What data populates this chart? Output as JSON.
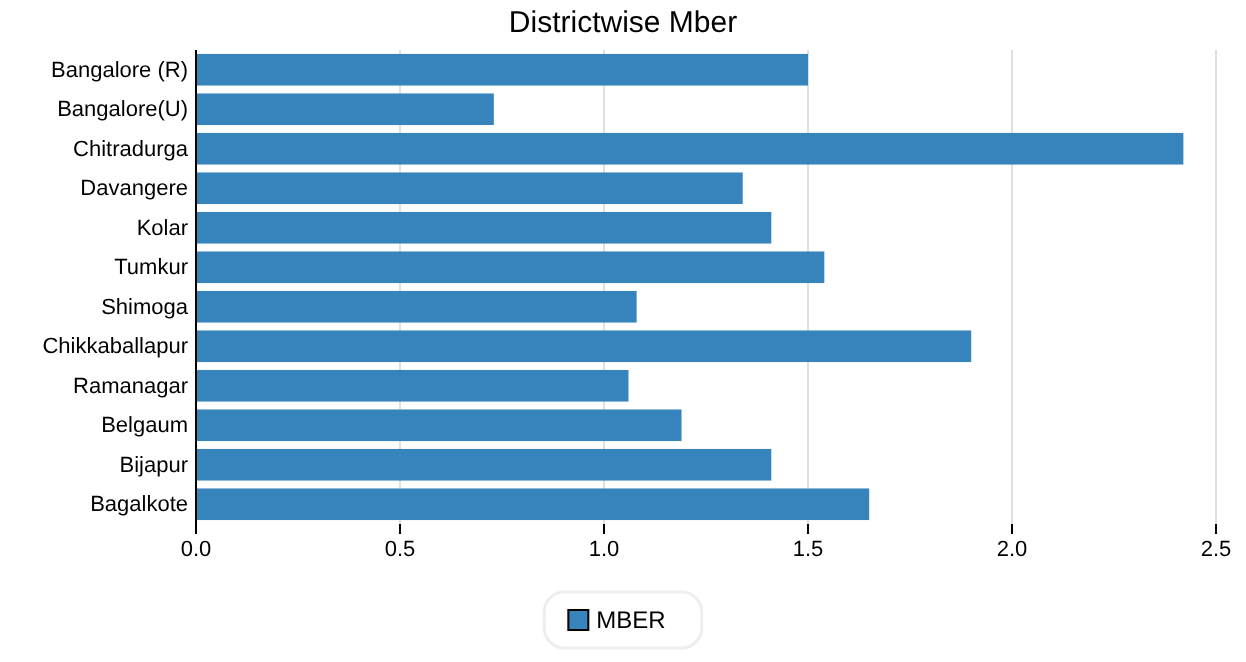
{
  "chart_data": {
    "type": "bar",
    "orientation": "horizontal",
    "title": "Districtwise Mber",
    "categories": [
      "Bangalore (R)",
      "Bangalore(U)",
      "Chitradurga",
      "Davangere",
      "Kolar",
      "Tumkur",
      "Shimoga",
      "Chikkaballapur",
      "Ramanagar",
      "Belgaum",
      "Bijapur",
      "Bagalkote"
    ],
    "series": [
      {
        "name": "MBER",
        "color": "#3784bc",
        "values": [
          1.5,
          0.73,
          2.42,
          1.34,
          1.41,
          1.54,
          1.08,
          1.9,
          1.06,
          1.19,
          1.41,
          1.65
        ]
      }
    ],
    "xlim": [
      0,
      2.5
    ],
    "xticks": [
      {
        "value": 0,
        "label": "0.0"
      },
      {
        "value": 0.5,
        "label": "0.5"
      },
      {
        "value": 1,
        "label": "1.0"
      },
      {
        "value": 1.5,
        "label": "1.5"
      },
      {
        "value": 2,
        "label": "2.0"
      },
      {
        "value": 2.5,
        "label": "2.5"
      }
    ],
    "grid": "x",
    "legend": "bottom"
  }
}
